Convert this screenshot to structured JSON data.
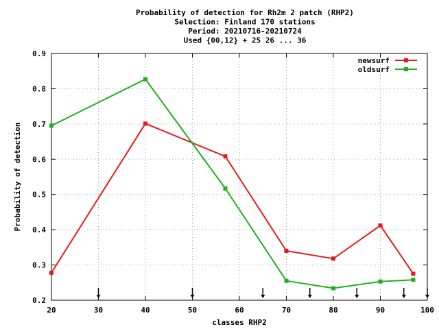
{
  "chart_data": {
    "type": "line",
    "title_lines": [
      "Probability of detection  for Rh2m 2 patch (RHP2)",
      "Selection: Finland    170 stations",
      "Period: 20210716-20210724",
      "Used {00,12} + 25 26 ... 36"
    ],
    "xlabel": "classes RHP2",
    "ylabel": "Probability of detection",
    "xlim": [
      20,
      100
    ],
    "ylim": [
      0.2,
      0.9
    ],
    "xticks": [
      20,
      30,
      40,
      50,
      60,
      70,
      80,
      90,
      100
    ],
    "yticks": [
      0.2,
      0.3,
      0.4,
      0.5,
      0.6,
      0.7,
      0.8,
      0.9
    ],
    "ytick_labels": [
      "0.2",
      "0.3",
      "0.4",
      "0.5",
      "0.6",
      "0.7",
      "0.8",
      "0.9"
    ],
    "grid": true,
    "legend_position": "top-right",
    "markers_x": [
      30,
      50,
      65,
      75,
      85,
      95,
      100
    ],
    "series": [
      {
        "name": "newsurf",
        "color": "#e41a1c",
        "x": [
          20,
          40,
          57,
          70,
          80,
          90,
          97
        ],
        "y": [
          0.278,
          0.701,
          0.608,
          0.34,
          0.318,
          0.412,
          0.275
        ]
      },
      {
        "name": "oldsurf",
        "color": "#1fb01f",
        "x": [
          20,
          40,
          57,
          70,
          80,
          90,
          97
        ],
        "y": [
          0.695,
          0.827,
          0.517,
          0.255,
          0.234,
          0.253,
          0.258
        ]
      }
    ]
  }
}
